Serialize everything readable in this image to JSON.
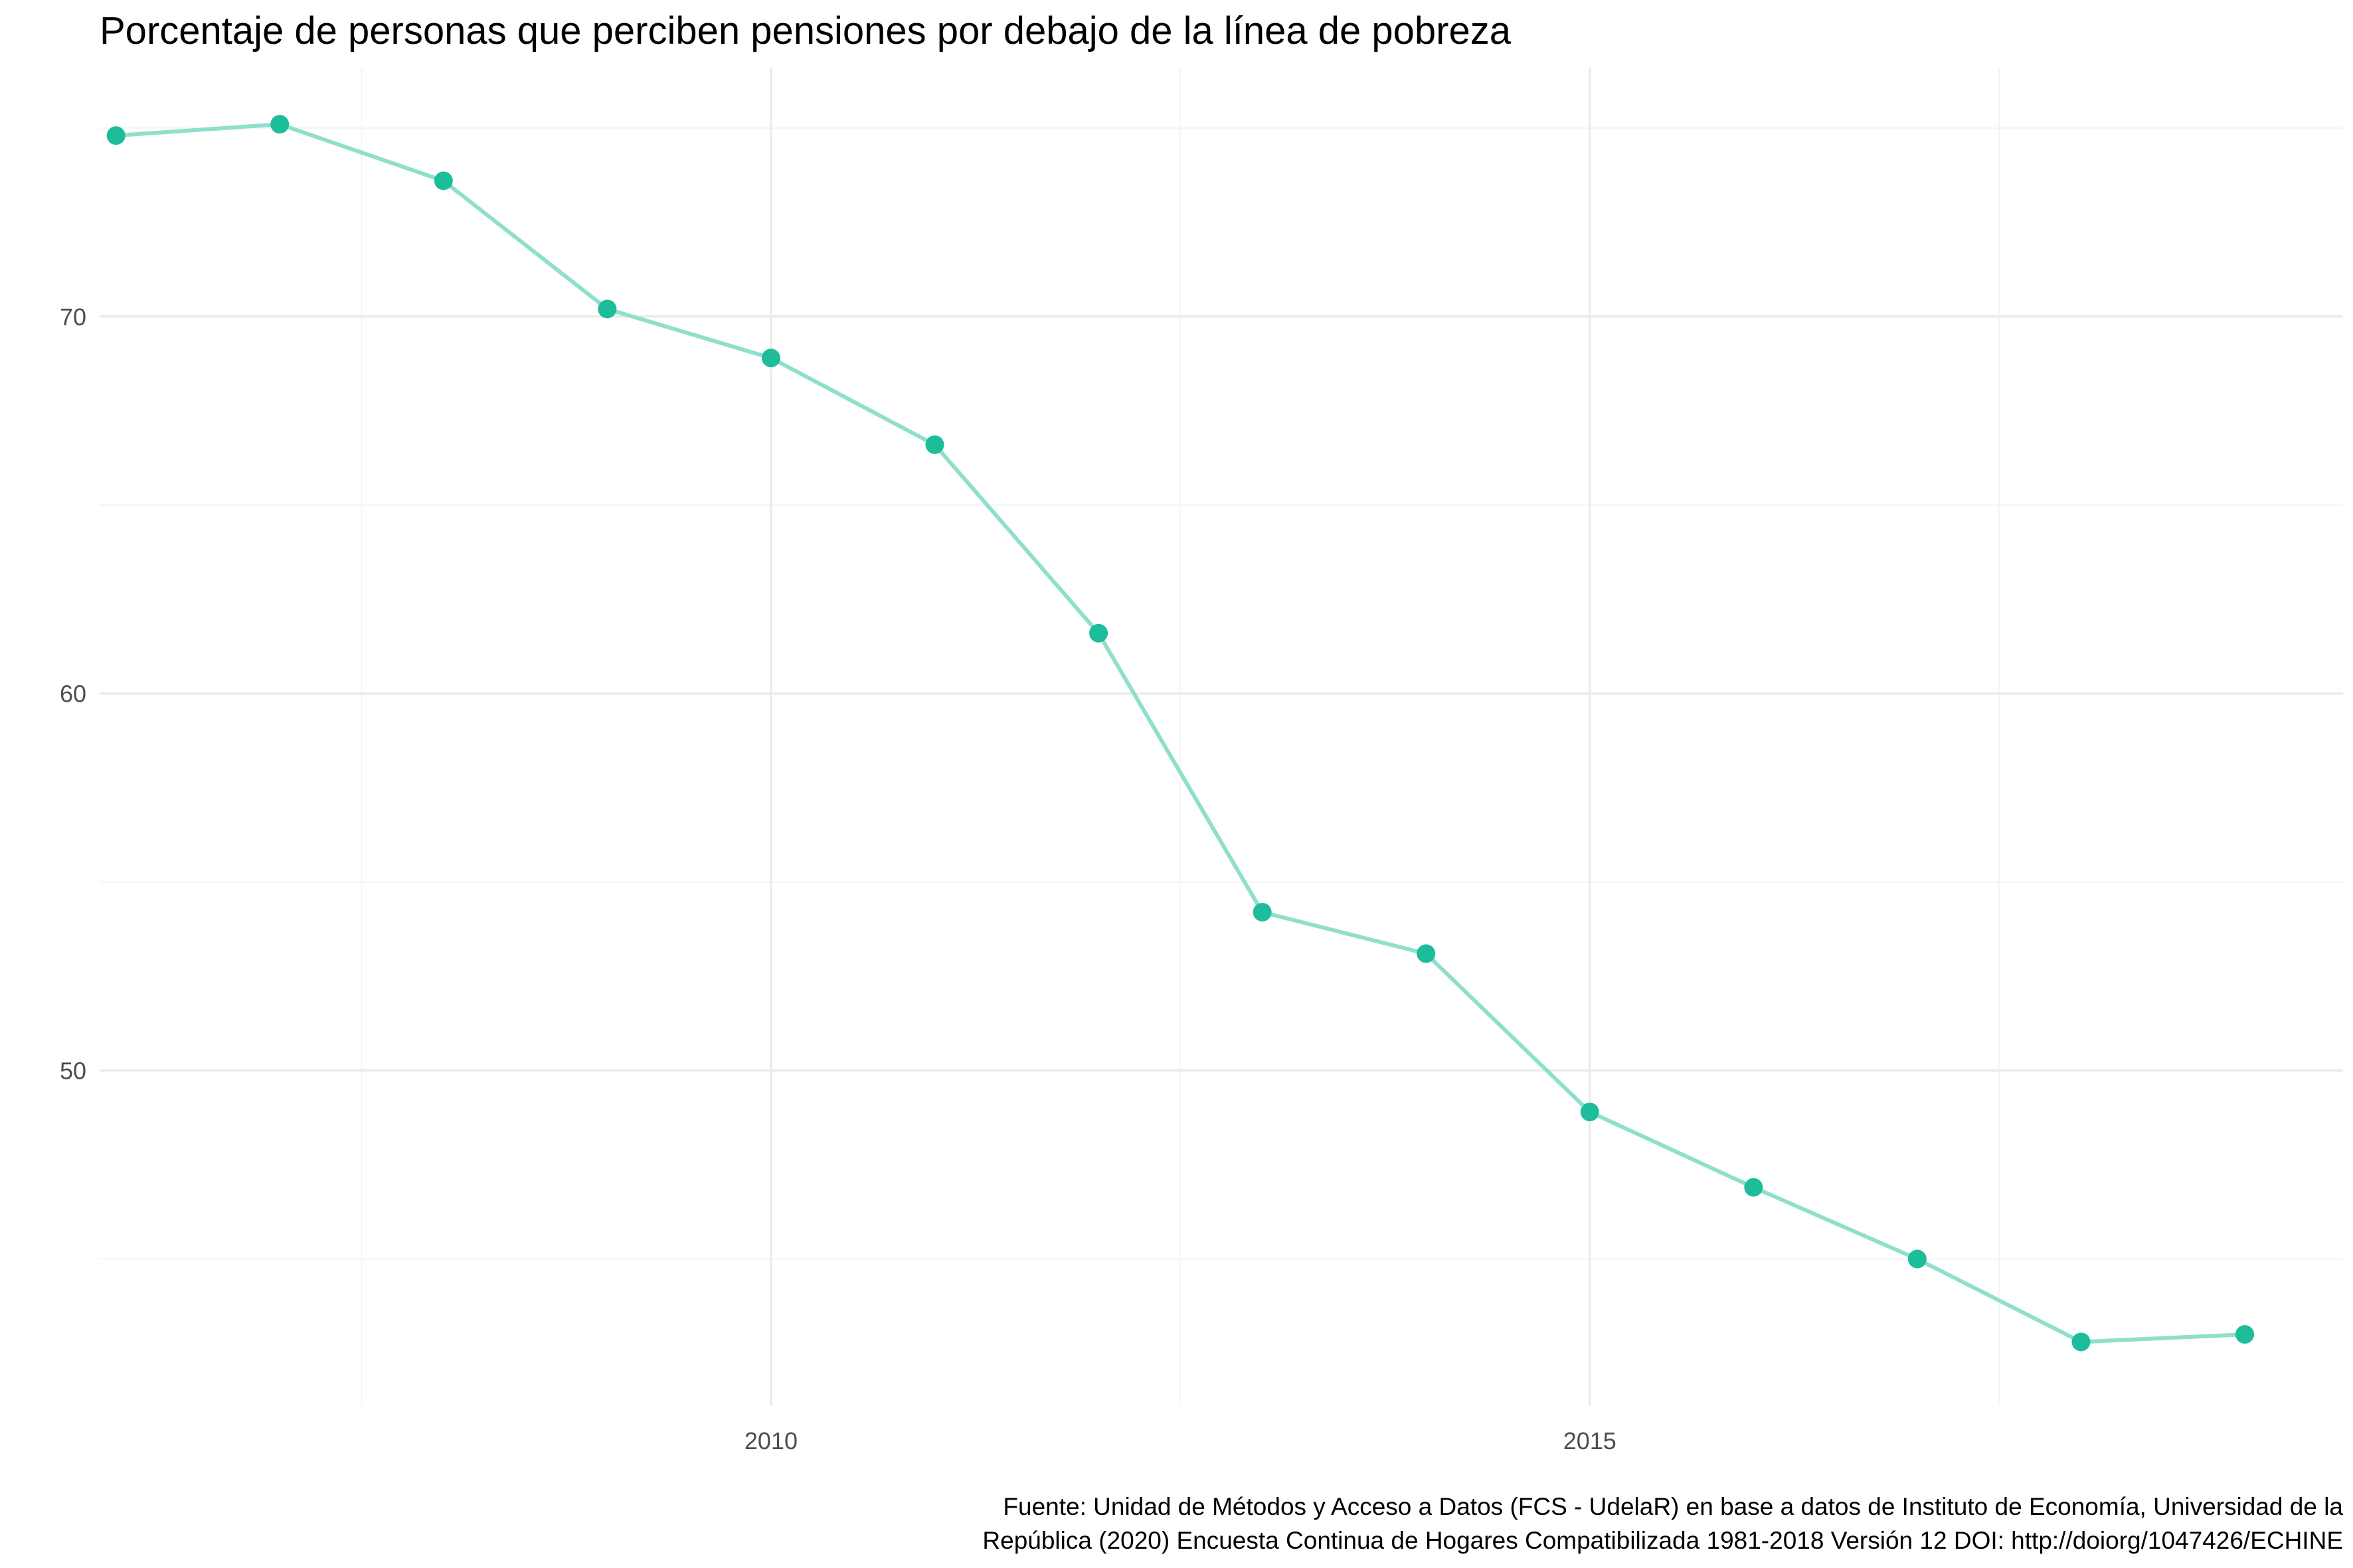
{
  "chart_data": {
    "type": "line",
    "title": "Porcentaje de personas que perciben pensiones por debajo de la línea de pobreza",
    "xlabel": "",
    "ylabel": "",
    "x_ticks": [
      2010,
      2015
    ],
    "y_ticks": [
      50,
      60,
      70
    ],
    "xlim": [
      2005.9,
      2019.6
    ],
    "ylim": [
      41.1,
      76.6
    ],
    "grid": true,
    "legend": "none",
    "series": [
      {
        "x": [
          2006,
          2007,
          2008,
          2009,
          2010,
          2011,
          2012,
          2013,
          2014,
          2015,
          2016,
          2017,
          2018,
          2019
        ],
        "y": [
          74.8,
          75.1,
          73.6,
          70.2,
          68.9,
          66.6,
          61.6,
          54.2,
          53.1,
          48.9,
          46.9,
          45.0,
          42.8,
          43.0
        ]
      }
    ],
    "colors": {
      "line": "#8fdfcc",
      "point": "#1dbc9a",
      "grid_major": "#ebebeb",
      "grid_minor": "#f4f4f4"
    },
    "caption": [
      "Fuente: Unidad de Métodos y Acceso a Datos (FCS - UdelaR) en base a datos de Instituto de Economía, Universidad de la",
      "República (2020) Encuesta Continua de Hogares Compatibilizada 1981-2018 Versión 12 DOI: http://doiorg/1047426/ECHINE"
    ]
  }
}
